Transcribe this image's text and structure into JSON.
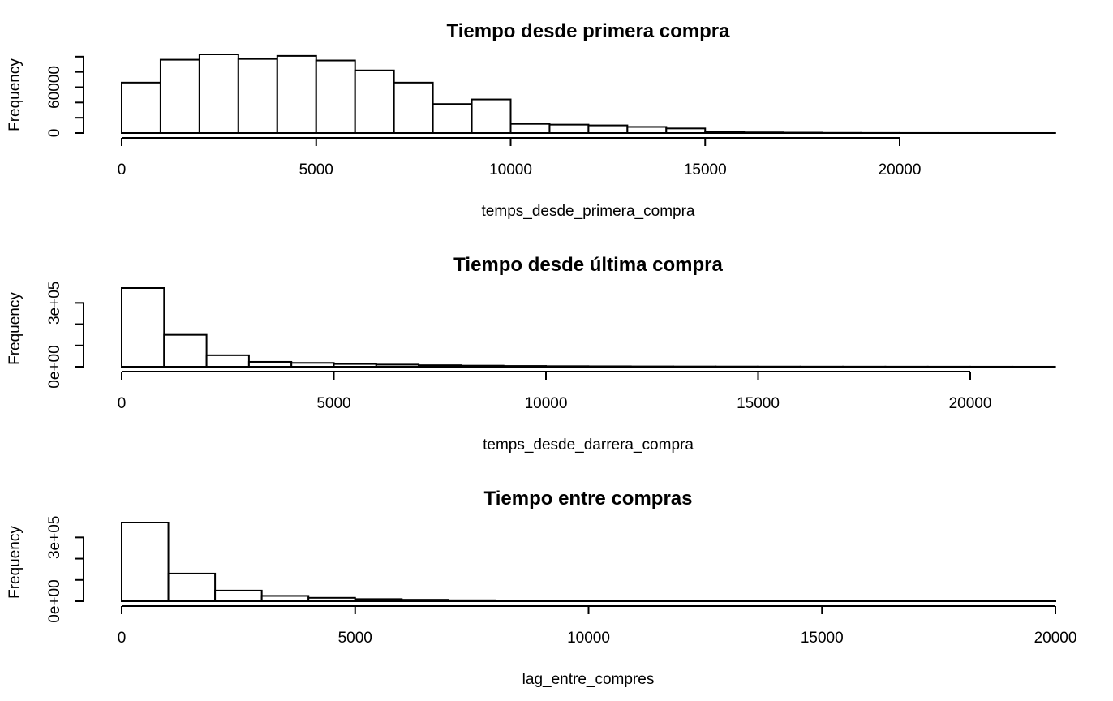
{
  "chart_data": [
    {
      "type": "histogram",
      "title": "Tiempo desde primera compra",
      "xlabel": "temps_desde_primera_compra",
      "ylabel": "Frequency",
      "bin_width": 1000,
      "bins_start": [
        0,
        1000,
        2000,
        3000,
        4000,
        5000,
        6000,
        7000,
        8000,
        9000,
        10000,
        11000,
        12000,
        13000,
        14000,
        15000,
        16000,
        17000,
        18000,
        19000,
        20000,
        21000,
        22000,
        23000
      ],
      "values": [
        66000,
        96000,
        103000,
        97000,
        101000,
        95000,
        82000,
        66000,
        38000,
        44000,
        12000,
        11000,
        10000,
        8000,
        6000,
        2000,
        800,
        500,
        200,
        100,
        50,
        30,
        20,
        10
      ],
      "xticks": [
        0,
        5000,
        10000,
        15000,
        20000
      ],
      "xtick_labels": [
        "0",
        "5000",
        "10000",
        "15000",
        "20000"
      ],
      "yticks": [
        0,
        60000
      ],
      "ytick_labels": [
        "0",
        "60000"
      ],
      "ytick_minor": [
        0,
        20000,
        40000,
        60000,
        80000,
        100000
      ],
      "ylim": [
        0,
        103000
      ],
      "grid": false,
      "legend": "none"
    },
    {
      "type": "histogram",
      "title": "Tiempo desde última compra",
      "xlabel": "temps_desde_darrera_compra",
      "ylabel": "Frequency",
      "bin_width": 1000,
      "bins_start": [
        0,
        1000,
        2000,
        3000,
        4000,
        5000,
        6000,
        7000,
        8000,
        9000,
        10000,
        11000,
        12000,
        13000,
        14000,
        15000,
        16000,
        17000,
        18000,
        19000,
        20000,
        21000
      ],
      "values": [
        370000,
        150000,
        54000,
        23000,
        18000,
        13000,
        10000,
        7000,
        5000,
        3500,
        2500,
        2000,
        1500,
        1200,
        1000,
        800,
        600,
        500,
        400,
        300,
        200,
        100
      ],
      "xticks": [
        0,
        5000,
        10000,
        15000,
        20000
      ],
      "xtick_labels": [
        "0",
        "5000",
        "10000",
        "15000",
        "20000"
      ],
      "yticks": [
        0,
        300000
      ],
      "ytick_labels": [
        "0e+00",
        "3e+05"
      ],
      "ytick_minor": [
        0,
        100000,
        200000,
        300000
      ],
      "ylim": [
        0,
        370000
      ],
      "grid": false,
      "legend": "none"
    },
    {
      "type": "histogram",
      "title": "Tiempo entre compras",
      "xlabel": "lag_entre_compres",
      "ylabel": "Frequency",
      "bin_width": 1000,
      "bins_start": [
        0,
        1000,
        2000,
        3000,
        4000,
        5000,
        6000,
        7000,
        8000,
        9000,
        10000,
        11000,
        12000,
        13000,
        14000,
        15000,
        16000,
        17000,
        18000,
        19000
      ],
      "values": [
        370000,
        130000,
        50000,
        25000,
        16000,
        10000,
        7000,
        4500,
        3000,
        2000,
        1500,
        1000,
        800,
        600,
        500,
        400,
        300,
        200,
        150,
        100
      ],
      "xticks": [
        0,
        5000,
        10000,
        15000,
        20000
      ],
      "xtick_labels": [
        "0",
        "5000",
        "10000",
        "15000",
        "20000"
      ],
      "yticks": [
        0,
        300000
      ],
      "ytick_labels": [
        "0e+00",
        "3e+05"
      ],
      "ytick_minor": [
        0,
        100000,
        200000,
        300000
      ],
      "ylim": [
        0,
        370000
      ],
      "grid": false,
      "legend": "none"
    }
  ]
}
